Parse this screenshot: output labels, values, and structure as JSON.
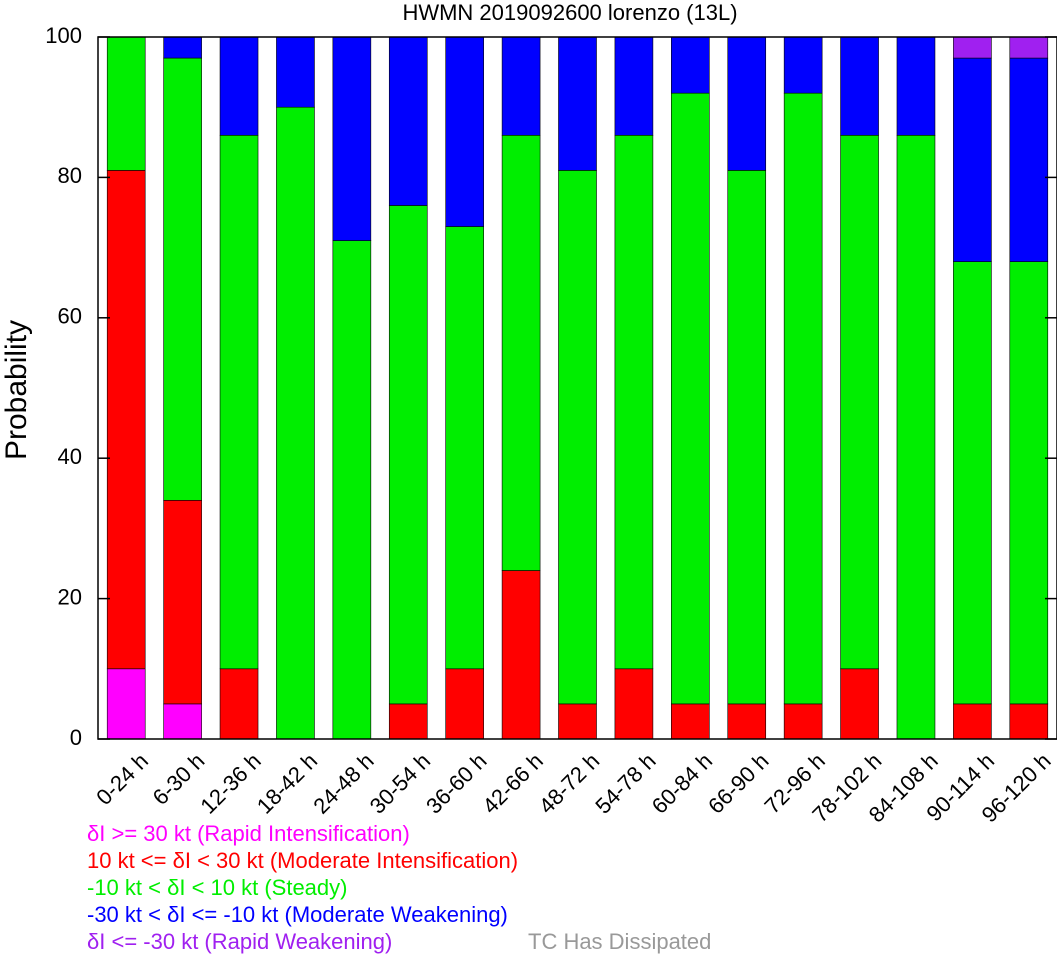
{
  "chart_data": {
    "type": "bar",
    "stacked": true,
    "title": "HWMN 2019092600 lorenzo (13L)",
    "ylabel": "Probability",
    "xlabel": "",
    "ylim": [
      0,
      100
    ],
    "yticks": [
      "0",
      "20",
      "40",
      "60",
      "80",
      "100"
    ],
    "grid": false,
    "legend_placement": "bottom",
    "categories": [
      "0-24 h",
      "6-30 h",
      "12-36 h",
      "18-42 h",
      "24-48 h",
      "30-54 h",
      "36-60 h",
      "42-66 h",
      "48-72 h",
      "54-78 h",
      "60-84 h",
      "66-90 h",
      "72-96 h",
      "78-102 h",
      "84-108 h",
      "90-114 h",
      "96-120 h"
    ],
    "series": [
      {
        "name": "δI >= 30 kt (Rapid Intensification)",
        "color": "#ff00ff",
        "values": [
          10,
          5,
          0,
          0,
          0,
          0,
          0,
          0,
          0,
          0,
          0,
          0,
          0,
          0,
          0,
          0,
          0
        ]
      },
      {
        "name": "10 kt <= δI < 30 kt (Moderate Intensification)",
        "color": "#ff0000",
        "values": [
          71,
          29,
          10,
          0,
          0,
          5,
          10,
          24,
          5,
          10,
          5,
          5,
          5,
          10,
          0,
          5,
          5
        ]
      },
      {
        "name": "-10 kt < δI < 10 kt (Steady)",
        "color": "#00ee00",
        "values": [
          19,
          63,
          76,
          90,
          71,
          71,
          63,
          62,
          76,
          76,
          87,
          76,
          87,
          76,
          86,
          63,
          63
        ]
      },
      {
        "name": "-30 kt < δI <= -10 kt (Moderate Weakening)",
        "color": "#0000ff",
        "values": [
          0,
          3,
          14,
          10,
          29,
          24,
          27,
          14,
          19,
          14,
          8,
          19,
          8,
          14,
          14,
          29,
          29
        ]
      },
      {
        "name": "δI <= -30 kt (Rapid Weakening)",
        "color": "#a020f0",
        "values": [
          0,
          0,
          0,
          0,
          0,
          0,
          0,
          0,
          0,
          0,
          0,
          0,
          0,
          0,
          0,
          3,
          3
        ]
      }
    ],
    "extra_legend": {
      "name": "TC Has Dissipated",
      "color": "#999999"
    }
  }
}
